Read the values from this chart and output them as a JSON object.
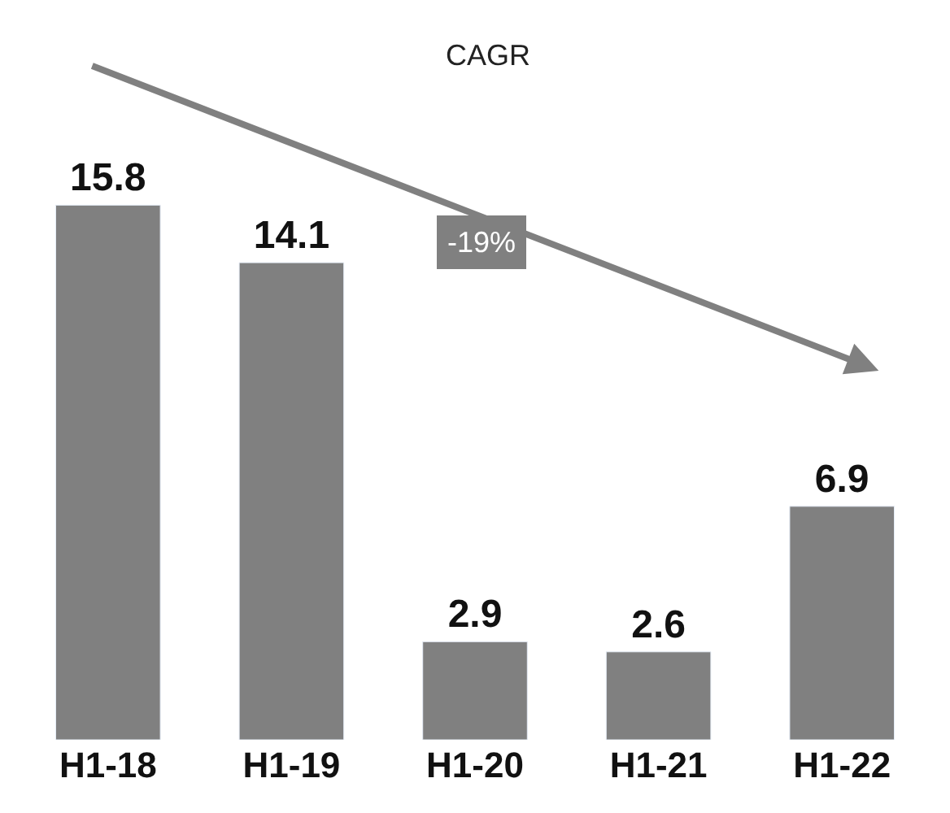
{
  "chart_data": {
    "type": "bar",
    "categories": [
      "H1-18",
      "H1-19",
      "H1-20",
      "H1-21",
      "H1-22"
    ],
    "values": [
      15.8,
      14.1,
      2.9,
      2.6,
      6.9
    ],
    "color": "#808080",
    "data_labels": true,
    "annotations": [
      "CAGR",
      "-19%"
    ]
  }
}
